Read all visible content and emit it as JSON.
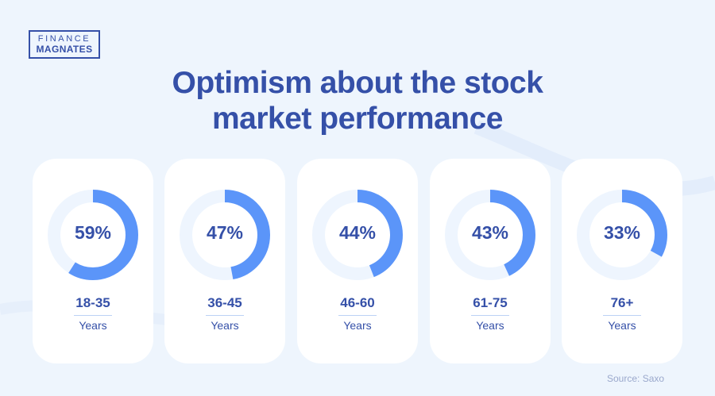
{
  "logo": {
    "line1": "FINANCE",
    "line2": "MAGNATES"
  },
  "title": "Optimism about the stock market performance",
  "title_lines": [
    "Optimism about the stock",
    "market performance"
  ],
  "cards": [
    {
      "value": 59,
      "label": "59%",
      "range": "18-35",
      "unit": "Years"
    },
    {
      "value": 47,
      "label": "47%",
      "range": "36-45",
      "unit": "Years"
    },
    {
      "value": 44,
      "label": "44%",
      "range": "46-60",
      "unit": "Years"
    },
    {
      "value": 43,
      "label": "43%",
      "range": "61-75",
      "unit": "Years"
    },
    {
      "value": 33,
      "label": "33%",
      "range": "76+",
      "unit": "Years"
    }
  ],
  "source": "Source: Saxo",
  "colors": {
    "primary": "#3550a8",
    "arc": "#5b95f9",
    "track": "#eef5fe",
    "background": "#eef5fd"
  },
  "chart_data": {
    "type": "pie",
    "subtype": "donut-multiples",
    "title": "Optimism about the stock market performance",
    "categories": [
      "18-35 Years",
      "36-45 Years",
      "46-60 Years",
      "61-75 Years",
      "76+ Years"
    ],
    "values": [
      59,
      47,
      44,
      43,
      33
    ],
    "unit": "%",
    "source": "Source: Saxo"
  }
}
